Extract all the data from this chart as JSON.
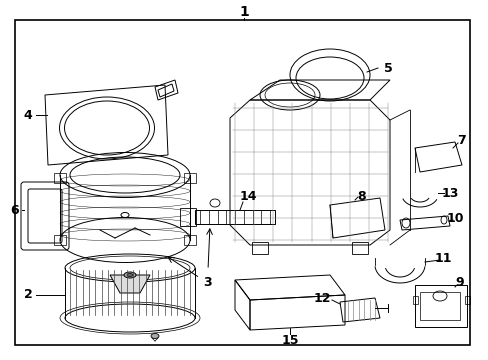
{
  "background_color": "#ffffff",
  "border_color": "#000000",
  "line_color": "#000000",
  "fig_width": 4.89,
  "fig_height": 3.6,
  "dpi": 100
}
